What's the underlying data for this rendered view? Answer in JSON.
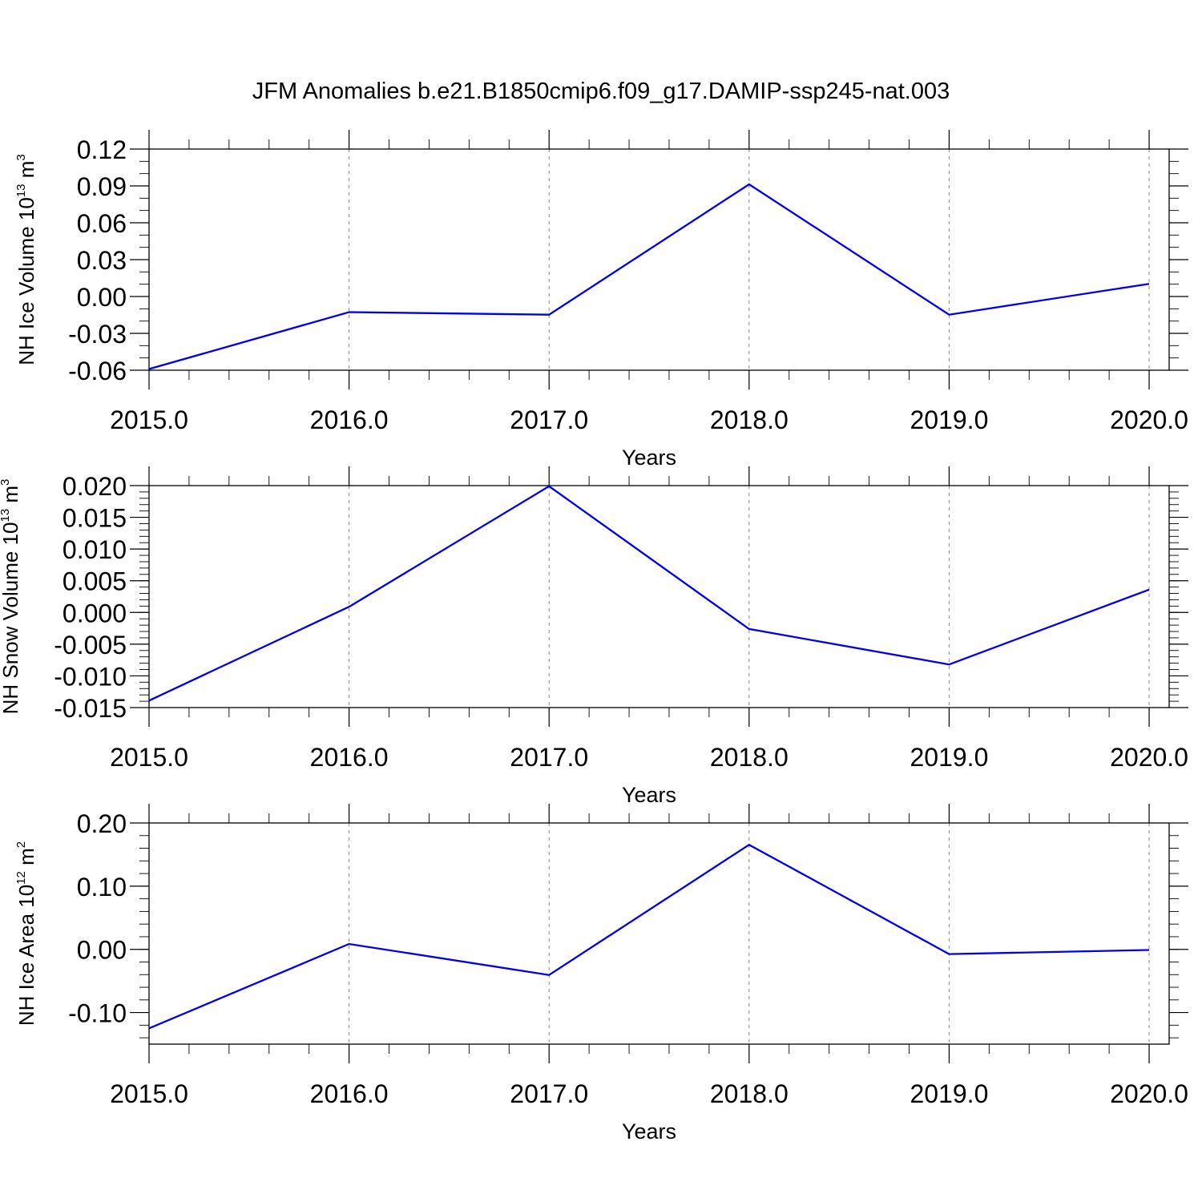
{
  "figure": {
    "title": "JFM Anomalies b.e21.B1850cmip6.f09_g17.DAMIP-ssp245-nat.003"
  },
  "chart_data": [
    {
      "type": "line",
      "name": "ice-volume",
      "xlabel": "Years",
      "ylabel": {
        "text": "NH Ice Volume 10",
        "sup1": "13",
        "mid": " m",
        "sup2": "3"
      },
      "x": [
        2015,
        2016,
        2017,
        2018,
        2019,
        2020
      ],
      "xticks": [
        "2015.0",
        "2016.0",
        "2017.0",
        "2018.0",
        "2019.0",
        "2020.0"
      ],
      "xlim": [
        2015,
        2020.1
      ],
      "ylim": [
        -0.06,
        0.12
      ],
      "yticks": [
        -0.06,
        -0.03,
        0.0,
        0.03,
        0.06,
        0.09,
        0.12
      ],
      "ytick_labels": [
        "-0.06",
        "-0.03",
        "0.00",
        "0.03",
        "0.06",
        "0.09",
        "0.12"
      ],
      "y_minor_per_major": 3,
      "series": [
        {
          "values": [
            -0.059,
            -0.0127,
            -0.0148,
            0.0913,
            -0.0148,
            0.0103
          ],
          "color": "#0000ee"
        }
      ],
      "grid": "vertical-dashed"
    },
    {
      "type": "line",
      "name": "snow-volume",
      "xlabel": "Years",
      "ylabel": {
        "text": "NH Snow Volume 10",
        "sup1": "13",
        "mid": " m",
        "sup2": "3"
      },
      "x": [
        2015,
        2016,
        2017,
        2018,
        2019,
        2020
      ],
      "xticks": [
        "2015.0",
        "2016.0",
        "2017.0",
        "2018.0",
        "2019.0",
        "2020.0"
      ],
      "xlim": [
        2015,
        2020.1
      ],
      "ylim": [
        -0.015,
        0.02
      ],
      "yticks": [
        -0.015,
        -0.01,
        -0.005,
        0.0,
        0.005,
        0.01,
        0.015,
        0.02
      ],
      "ytick_labels": [
        "-0.015",
        "-0.010",
        "-0.005",
        "0.000",
        "0.005",
        "0.010",
        "0.015",
        "0.020"
      ],
      "y_minor_per_major": 5,
      "series": [
        {
          "values": [
            -0.0139,
            0.0009,
            0.0199,
            -0.0026,
            -0.0082,
            0.0036
          ],
          "color": "#0000ee"
        }
      ],
      "grid": "vertical-dashed"
    },
    {
      "type": "line",
      "name": "ice-area",
      "xlabel": "Years",
      "ylabel": {
        "text": "NH Ice Area 10",
        "sup1": "12",
        "mid": " m",
        "sup2": "2"
      },
      "x": [
        2015,
        2016,
        2017,
        2018,
        2019,
        2020
      ],
      "xticks": [
        "2015.0",
        "2016.0",
        "2017.0",
        "2018.0",
        "2019.0",
        "2020.0"
      ],
      "xlim": [
        2015,
        2020.1
      ],
      "ylim": [
        -0.15,
        0.2
      ],
      "yticks": [
        -0.1,
        0.0,
        0.1,
        0.2
      ],
      "ytick_labels": [
        "-0.10",
        "0.00",
        "0.10",
        "0.20"
      ],
      "y_minor_per_major": 5,
      "series": [
        {
          "values": [
            -0.125,
            0.0085,
            -0.0405,
            0.1655,
            -0.0075,
            -0.001
          ],
          "color": "#0000ee"
        }
      ],
      "grid": "vertical-dashed"
    }
  ]
}
